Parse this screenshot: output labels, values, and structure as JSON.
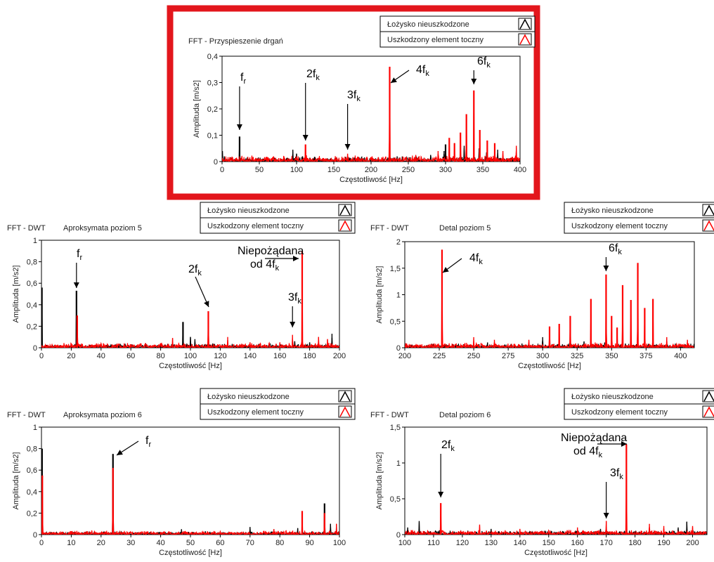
{
  "colors": {
    "healthy": "#000000",
    "damaged": "#ff0000",
    "highlight_frame": "#e3161c"
  },
  "chart_data": [
    {
      "id": "fft",
      "type": "line",
      "title": "FFT - Przyspieszenie drgań",
      "subtitle": "",
      "xlabel": "Częstotliwość [Hz]",
      "ylabel": "Amplituda [m/s2]",
      "xlim": [
        0,
        400
      ],
      "ylim": [
        0,
        0.4
      ],
      "xticks": [
        0,
        50,
        100,
        150,
        200,
        250,
        300,
        350,
        400
      ],
      "xtick_labels": [
        "0",
        "50",
        "100",
        "150",
        "200",
        "250",
        "300",
        "350",
        "400"
      ],
      "yticks": [
        0,
        0.1,
        0.2,
        0.3,
        0.4
      ],
      "ytick_labels": [
        "0",
        "0,1",
        "0,2",
        "0,3",
        "0,4"
      ],
      "highlighted": true,
      "legend": [
        "Łożysko nieuszkodzone",
        "Uszkodzony element toczny"
      ],
      "series": [
        {
          "name": "Łożysko nieuszkodzone",
          "color": "#000000",
          "peaks": [
            [
              0.5,
              0.04
            ],
            [
              3,
              0.02
            ],
            [
              23.5,
              0.095
            ],
            [
              47,
              0.01
            ],
            [
              70,
              0.008
            ],
            [
              95,
              0.045
            ],
            [
              100,
              0.03
            ],
            [
              108,
              0.02
            ],
            [
              140,
              0.01
            ],
            [
              170,
              0.015
            ],
            [
              190,
              0.012
            ],
            [
              210,
              0.015
            ],
            [
              235,
              0.02
            ],
            [
              260,
              0.02
            ],
            [
              280,
              0.025
            ],
            [
              298,
              0.04
            ],
            [
              300,
              0.065
            ],
            [
              305,
              0.03
            ],
            [
              325,
              0.06
            ],
            [
              345,
              0.05
            ],
            [
              355,
              0.035
            ],
            [
              370,
              0.045
            ]
          ],
          "noise": 0.01
        },
        {
          "name": "Uszkodzony element toczny",
          "color": "#ff0000",
          "peaks": [
            [
              112,
              0.065
            ],
            [
              168.5,
              0.03
            ],
            [
              225,
              0.36
            ],
            [
              260,
              0.025
            ],
            [
              290,
              0.04
            ],
            [
              305,
              0.09
            ],
            [
              312,
              0.07
            ],
            [
              320,
              0.11
            ],
            [
              328,
              0.18
            ],
            [
              338,
              0.27
            ],
            [
              346,
              0.12
            ],
            [
              356,
              0.08
            ],
            [
              366,
              0.07
            ],
            [
              377,
              0.04
            ],
            [
              395,
              0.06
            ]
          ],
          "noise": 0.012
        }
      ],
      "annotations": [
        {
          "base": "f",
          "sub": "r",
          "x": 23.5
        },
        {
          "base": "2f",
          "sub": "k",
          "x": 112
        },
        {
          "base": "3f",
          "sub": "k",
          "x": 168.5
        },
        {
          "base": "4f",
          "sub": "k",
          "x": 225
        },
        {
          "base": "6f",
          "sub": "k",
          "x": 338
        }
      ]
    },
    {
      "id": "a5",
      "type": "line",
      "title": "FFT - DWT",
      "subtitle": "Aproksymata poziom 5",
      "xlabel": "Częstotliwość [Hz]",
      "ylabel": "Amplituda [m/s2]",
      "xlim": [
        0,
        200
      ],
      "ylim": [
        0,
        1
      ],
      "xticks": [
        0,
        20,
        40,
        60,
        80,
        100,
        120,
        140,
        160,
        180,
        200
      ],
      "xtick_labels": [
        "0",
        "20",
        "40",
        "60",
        "80",
        "100",
        "120",
        "140",
        "160",
        "180",
        "200"
      ],
      "yticks": [
        0,
        0.2,
        0.4,
        0.6,
        0.8,
        1
      ],
      "ytick_labels": [
        "0",
        "0,2",
        "0,4",
        "0,6",
        "0,8",
        "1"
      ],
      "legend": [
        "Łożysko nieuszkodzone",
        "Uszkodzony element toczny"
      ],
      "series": [
        {
          "name": "Łożysko nieuszkodzone",
          "color": "#000000",
          "peaks": [
            [
              0.3,
              0.56
            ],
            [
              23.5,
              0.53
            ],
            [
              47,
              0.03
            ],
            [
              70,
              0.04
            ],
            [
              95,
              0.24
            ],
            [
              100,
              0.1
            ],
            [
              103,
              0.08
            ],
            [
              115,
              0.04
            ],
            [
              140,
              0.03
            ],
            [
              170,
              0.06
            ],
            [
              180,
              0.05
            ],
            [
              195,
              0.13
            ]
          ],
          "noise": 0.02
        },
        {
          "name": "Uszkodzony element toczny",
          "color": "#ff0000",
          "peaks": [
            [
              10,
              0.02
            ],
            [
              24,
              0.3
            ],
            [
              60,
              0.03
            ],
            [
              88,
              0.09
            ],
            [
              112,
              0.34
            ],
            [
              125,
              0.1
            ],
            [
              140,
              0.05
            ],
            [
              160,
              0.05
            ],
            [
              168.5,
              0.12
            ],
            [
              175,
              0.9
            ],
            [
              186,
              0.1
            ],
            [
              192,
              0.08
            ]
          ],
          "noise": 0.025
        }
      ],
      "annotations": [
        {
          "base": "f",
          "sub": "r",
          "x": 23.5
        },
        {
          "base": "2f",
          "sub": "k",
          "x": 112
        },
        {
          "base": "3f",
          "sub": "k",
          "x": 168.5
        },
        {
          "line1": "Niepożądana",
          "base": "od 4f",
          "sub": "k",
          "x": 175
        }
      ]
    },
    {
      "id": "d5",
      "type": "line",
      "title": "FFT - DWT",
      "subtitle": "Detal poziom 5",
      "xlabel": "Częstotliwość [Hz]",
      "ylabel": "Amplituda [m/s2]",
      "xlim": [
        200,
        410
      ],
      "ylim": [
        0,
        2
      ],
      "xticks": [
        200,
        225,
        250,
        275,
        300,
        325,
        350,
        375,
        400
      ],
      "xtick_labels": [
        "200",
        "225",
        "250",
        "275",
        "300",
        "325",
        "350",
        "375",
        "400"
      ],
      "yticks": [
        0,
        0.5,
        1,
        1.5,
        2
      ],
      "ytick_labels": [
        "0",
        "0,5",
        "1",
        "1,5",
        "2"
      ],
      "legend": [
        "Łożysko nieuszkodzone",
        "Uszkodzony element toczny"
      ],
      "series": [
        {
          "name": "Łożysko nieuszkodzone",
          "color": "#000000",
          "peaks": [
            [
              205,
              0.05
            ],
            [
              260,
              0.1
            ],
            [
              285,
              0.08
            ],
            [
              300,
              0.2
            ],
            [
              305,
              0.15
            ],
            [
              312,
              0.1
            ],
            [
              330,
              0.12
            ],
            [
              345,
              0.1
            ],
            [
              360,
              0.08
            ],
            [
              380,
              0.08
            ],
            [
              400,
              0.06
            ]
          ],
          "noise": 0.04
        },
        {
          "name": "Uszkodzony element toczny",
          "color": "#ff0000",
          "peaks": [
            [
              227,
              1.85
            ],
            [
              250,
              0.2
            ],
            [
              265,
              0.15
            ],
            [
              290,
              0.15
            ],
            [
              305,
              0.4
            ],
            [
              312,
              0.45
            ],
            [
              320,
              0.6
            ],
            [
              335,
              0.92
            ],
            [
              346,
              1.38
            ],
            [
              350,
              0.6
            ],
            [
              354,
              0.38
            ],
            [
              358,
              1.18
            ],
            [
              364,
              0.9
            ],
            [
              369,
              1.6
            ],
            [
              374,
              0.75
            ],
            [
              380,
              0.92
            ],
            [
              390,
              0.2
            ],
            [
              405,
              0.15
            ]
          ],
          "noise": 0.05
        }
      ],
      "annotations": [
        {
          "base": "4f",
          "sub": "k",
          "x": 227
        },
        {
          "base": "6f",
          "sub": "k",
          "x": 346
        }
      ]
    },
    {
      "id": "a6",
      "type": "line",
      "title": "FFT - DWT",
      "subtitle": "Aproksymata poziom 6",
      "xlabel": "Częstotliwość [Hz]",
      "ylabel": "Amplituda [m/s2]",
      "xlim": [
        0,
        100
      ],
      "ylim": [
        0,
        1
      ],
      "xticks": [
        0,
        10,
        20,
        30,
        40,
        50,
        60,
        70,
        80,
        90,
        100
      ],
      "xtick_labels": [
        "0",
        "10",
        "20",
        "30",
        "40",
        "50",
        "60",
        "70",
        "80",
        "90",
        "100"
      ],
      "yticks": [
        0,
        0.2,
        0.4,
        0.6,
        0.8,
        1
      ],
      "ytick_labels": [
        "0",
        "0,2",
        "0,4",
        "0,6",
        "0,8",
        "1"
      ],
      "legend": [
        "Łożysko nieuszkodzone",
        "Uszkodzony element toczny"
      ],
      "series": [
        {
          "name": "Łożysko nieuszkodzone",
          "color": "#000000",
          "peaks": [
            [
              0.2,
              0.8
            ],
            [
              10,
              0.02
            ],
            [
              24,
              0.75
            ],
            [
              47,
              0.05
            ],
            [
              55,
              0.03
            ],
            [
              70,
              0.07
            ],
            [
              78,
              0.05
            ],
            [
              86,
              0.06
            ],
            [
              95,
              0.29
            ],
            [
              97,
              0.1
            ]
          ],
          "noise": 0.015
        },
        {
          "name": "Uszkodzony element toczny",
          "color": "#ff0000",
          "peaks": [
            [
              0.3,
              0.55
            ],
            [
              10,
              0.03
            ],
            [
              24,
              0.62
            ],
            [
              40,
              0.02
            ],
            [
              60,
              0.03
            ],
            [
              78,
              0.05
            ],
            [
              87.5,
              0.22
            ],
            [
              95,
              0.2
            ],
            [
              99,
              0.1
            ]
          ],
          "noise": 0.02
        }
      ],
      "annotations": [
        {
          "base": "f",
          "sub": "r",
          "x": 24
        }
      ]
    },
    {
      "id": "d6",
      "type": "line",
      "title": "FFT - DWT",
      "subtitle": "Detal poziom 6",
      "xlabel": "Częstotliwość [Hz]",
      "ylabel": "Amplituda [m/s2]",
      "xlim": [
        100,
        205
      ],
      "ylim": [
        0,
        1.5
      ],
      "xticks": [
        100,
        110,
        120,
        130,
        140,
        150,
        160,
        170,
        180,
        190,
        200
      ],
      "xtick_labels": [
        "100",
        "110",
        "120",
        "130",
        "140",
        "150",
        "160",
        "170",
        "180",
        "190",
        "200"
      ],
      "yticks": [
        0,
        0.5,
        1,
        1.5
      ],
      "ytick_labels": [
        "0",
        "0,5",
        "1",
        "1,5"
      ],
      "legend": [
        "Łożysko nieuszkodzone",
        "Uszkodzony element toczny"
      ],
      "series": [
        {
          "name": "Łożysko nieuszkodzone",
          "color": "#000000",
          "peaks": [
            [
              101,
              0.1
            ],
            [
              105,
              0.19
            ],
            [
              112,
              0.06
            ],
            [
              130,
              0.08
            ],
            [
              150,
              0.06
            ],
            [
              168,
              0.08
            ],
            [
              185,
              0.06
            ],
            [
              195,
              0.1
            ],
            [
              198,
              0.18
            ]
          ],
          "noise": 0.03
        },
        {
          "name": "Uszkodzony element toczny",
          "color": "#ff0000",
          "peaks": [
            [
              112.5,
              0.44
            ],
            [
              126,
              0.14
            ],
            [
              140,
              0.08
            ],
            [
              160,
              0.1
            ],
            [
              170,
              0.19
            ],
            [
              177,
              1.26
            ],
            [
              185,
              0.15
            ],
            [
              190,
              0.12
            ],
            [
              200,
              0.12
            ]
          ],
          "noise": 0.035
        }
      ],
      "annotations": [
        {
          "base": "2f",
          "sub": "k",
          "x": 112.5
        },
        {
          "base": "3f",
          "sub": "k",
          "x": 170
        },
        {
          "line1": "Niepożądana",
          "base": "od 4f",
          "sub": "k",
          "x": 177
        }
      ]
    }
  ]
}
